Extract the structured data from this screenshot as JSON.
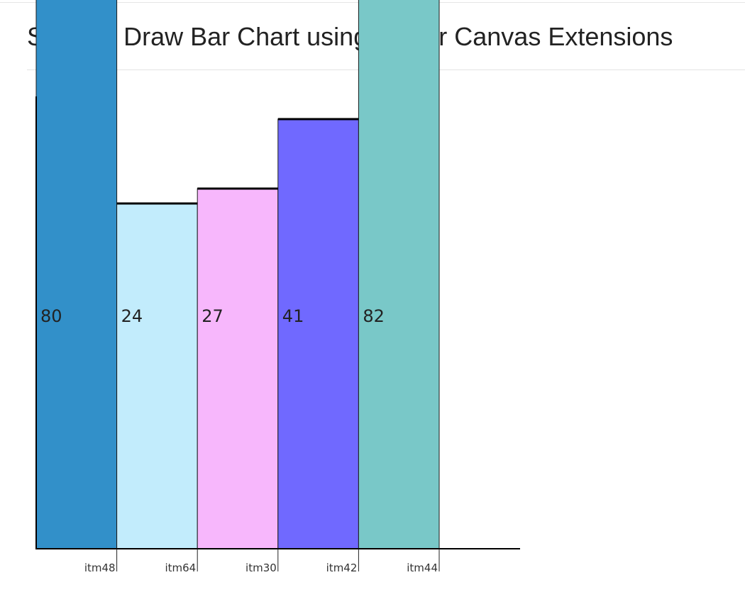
{
  "page": {
    "title": "Shanu - Draw Bar Chart using Blazor Canvas Extensions"
  },
  "chart_data": {
    "type": "bar",
    "categories": [
      "itm48",
      "itm64",
      "itm30",
      "itm42",
      "itm44"
    ],
    "values": [
      80,
      24,
      27,
      41,
      82
    ],
    "data_labels": [
      "80",
      "24",
      "27",
      "41",
      "82"
    ],
    "colors": [
      "#3290c9",
      "#c2ecfc",
      "#f7b7fc",
      "#7069ff",
      "#79c8c8"
    ],
    "title": "",
    "xlabel": "",
    "ylabel": "",
    "grid": false,
    "legend": "none"
  }
}
